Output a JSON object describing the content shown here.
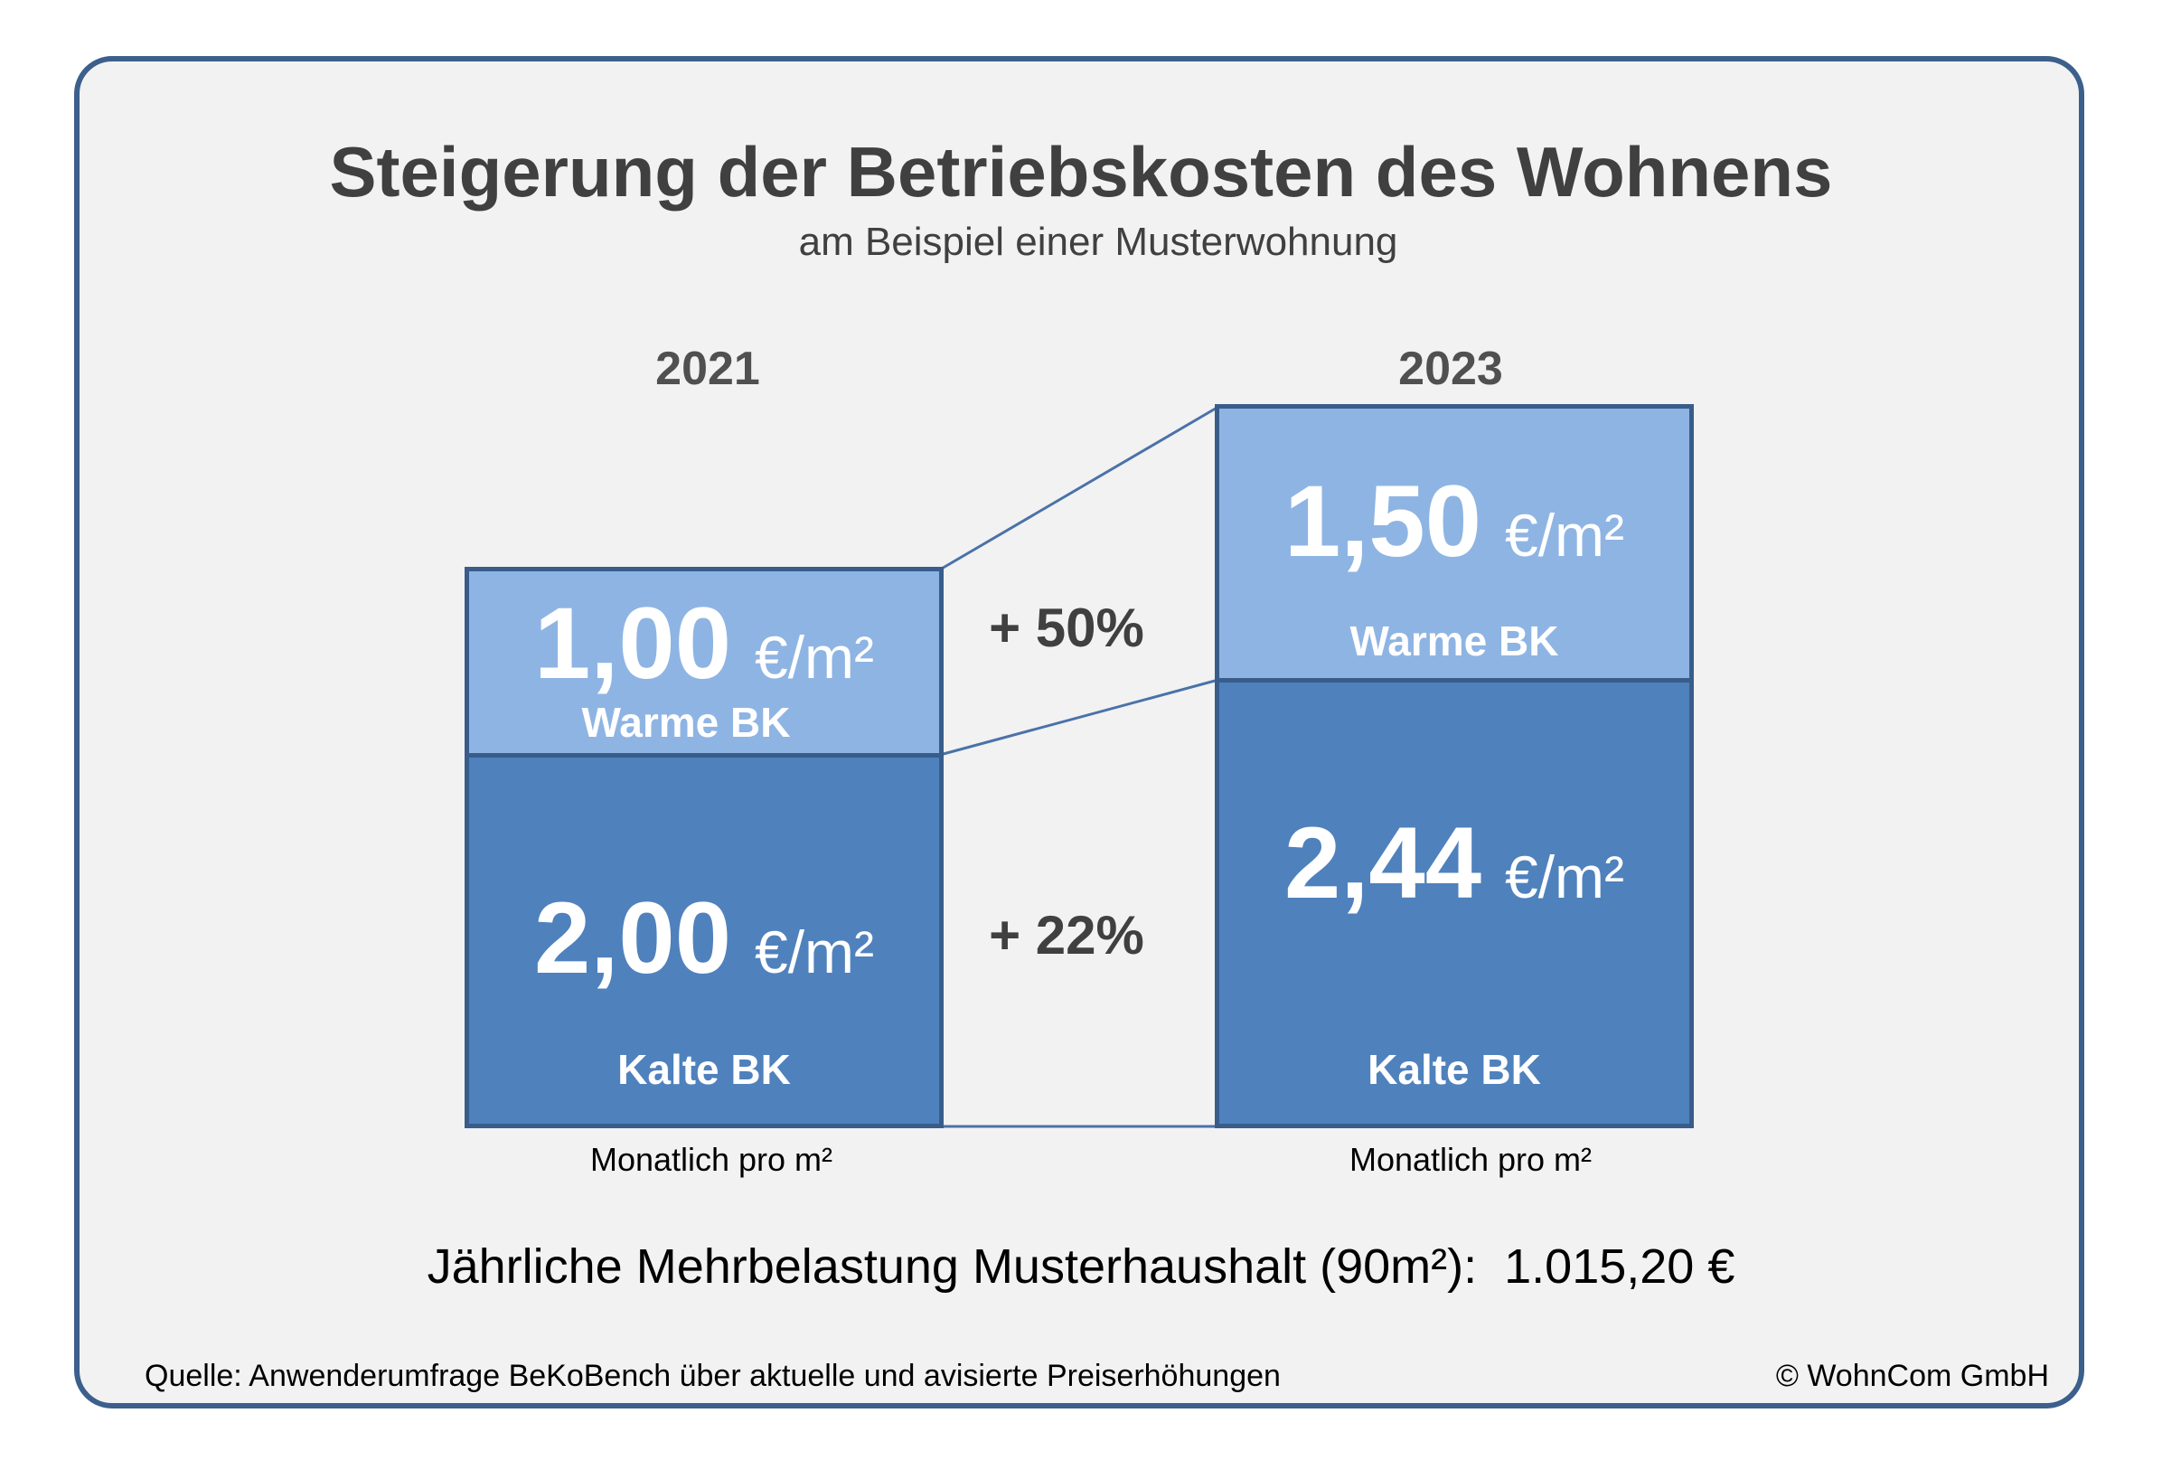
{
  "title": "Steigerung der Betriebskosten des Wohnens",
  "subtitle": "am Beispiel einer Musterwohnung",
  "chart_data": {
    "type": "bar",
    "stacked": true,
    "categories": [
      "2021",
      "2023"
    ],
    "series": [
      {
        "name": "Kalte BK",
        "values": [
          2.0,
          2.44
        ],
        "color": "#4f81bd"
      },
      {
        "name": "Warme BK",
        "values": [
          1.0,
          1.5
        ],
        "color": "#8eb4e3"
      }
    ],
    "value_labels": {
      "warm": [
        "1,00",
        "1,50"
      ],
      "cold": [
        "2,00",
        "2,44"
      ]
    },
    "unit": "€/m²",
    "changes": {
      "warm": "+ 50%",
      "cold": "+ 22%"
    },
    "xlabel": "Monatlich pro m²"
  },
  "annual_text": "Jährliche Mehrbelastung Musterhaushalt (90m²):  1.015,20 €",
  "source": "Quelle: Anwenderumfrage BeKoBench über aktuelle und avisierte Preiserhöhungen",
  "copyright": "© WohnCom GmbH",
  "colors": {
    "frame": "#3c5f8c",
    "warm": "#8eb4e3",
    "cold": "#4f81bd",
    "connector": "#4a72a8"
  }
}
